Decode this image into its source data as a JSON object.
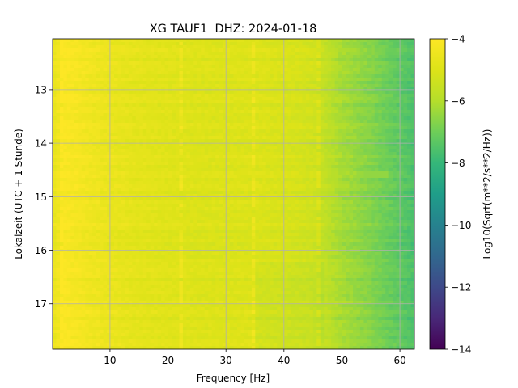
{
  "chart_data": {
    "type": "heatmap",
    "title": "XG TAUF1  DHZ: 2024-01-18",
    "xlabel": "Frequency [Hz]",
    "ylabel": "Lokalzeit (UTC + 1 Stunde)",
    "xlim": [
      0.1,
      62.5
    ],
    "ylim": [
      17.85,
      12.05
    ],
    "x_ticks": [
      10,
      20,
      30,
      40,
      50,
      60
    ],
    "y_ticks": [
      13,
      14,
      15,
      16,
      17
    ],
    "grid": true,
    "colorbar": {
      "label": "Log10(Sqrt(m**2/s**2/Hz))",
      "range": [
        -14,
        -4
      ],
      "ticks": [
        -14,
        -12,
        -10,
        -8,
        -6,
        -4
      ],
      "tick_labels": [
        "−14",
        "−12",
        "−10",
        "−8",
        "−6",
        "−4"
      ],
      "colormap": "viridis"
    },
    "spectral_profile": {
      "frequency_hz": [
        0.5,
        2,
        5,
        10,
        15,
        20,
        25,
        30,
        35,
        40,
        45,
        47,
        50,
        55,
        60,
        62.5
      ],
      "log10_amplitude": [
        -4.6,
        -4.1,
        -4.3,
        -4.6,
        -4.8,
        -4.9,
        -5.0,
        -5.0,
        -5.0,
        -5.1,
        -5.3,
        -5.7,
        -6.2,
        -6.7,
        -7.3,
        -7.6
      ]
    },
    "narrowband_lines_hz": [
      1.8,
      22.5,
      34.5,
      46.2
    ],
    "transient_line": {
      "frequency_hz": [
        54,
        58
      ],
      "time_h": 14.55,
      "log10_amplitude": -6.5
    }
  }
}
